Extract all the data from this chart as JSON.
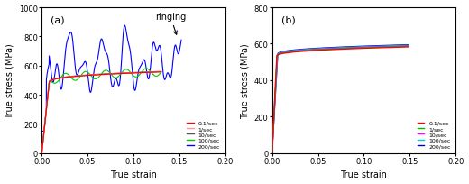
{
  "fig_width": 5.2,
  "fig_height": 2.05,
  "dpi": 100,
  "panel_a": {
    "label": "(a)",
    "xlabel": "True strain",
    "ylabel": "True stress (MPa)",
    "xlim": [
      0.0,
      0.2
    ],
    "ylim": [
      0,
      1000
    ],
    "yticks": [
      0,
      200,
      400,
      600,
      800,
      1000
    ],
    "xticks": [
      0.0,
      0.05,
      0.1,
      0.15,
      0.2
    ],
    "annotation_text": "ringing",
    "series": [
      {
        "label": "0.1/sec",
        "color": "#FF0000"
      },
      {
        "label": "1/sec",
        "color": "#FF9999"
      },
      {
        "label": "10/sec",
        "color": "#555555"
      },
      {
        "label": "100/sec",
        "color": "#00CC00"
      },
      {
        "label": "200/sec",
        "color": "#0000FF"
      }
    ]
  },
  "panel_b": {
    "label": "(b)",
    "xlabel": "True strain",
    "ylabel": "True stress (MPa)",
    "xlim": [
      0.0,
      0.2
    ],
    "ylim": [
      0,
      800
    ],
    "yticks": [
      0,
      200,
      400,
      600,
      800
    ],
    "xticks": [
      0.0,
      0.05,
      0.1,
      0.15,
      0.2
    ],
    "series": [
      {
        "label": "0.1/sec",
        "color": "#FF0000"
      },
      {
        "label": "1/sec",
        "color": "#00BB00"
      },
      {
        "label": "10/sec",
        "color": "#FF00FF"
      },
      {
        "label": "100/sec",
        "color": "#00CCCC"
      },
      {
        "label": "200/sec",
        "color": "#0000CC"
      }
    ]
  }
}
